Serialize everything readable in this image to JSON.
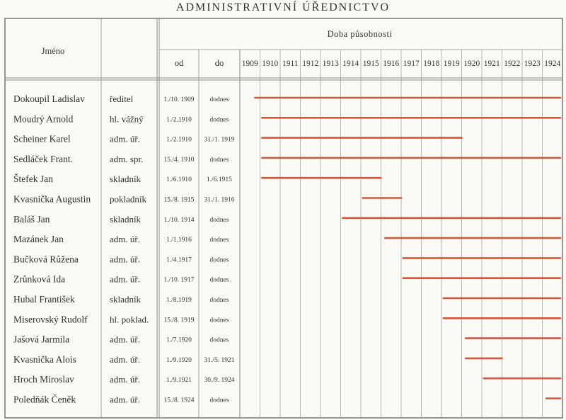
{
  "title": "ADMINISTRATIVNÍ ÚŘEDNICTVO",
  "chart_data": {
    "type": "bar",
    "title": "ADMINISTRATIVNÍ ÚŘEDNICTVO",
    "headers": {
      "name": "Jméno",
      "period": "Doba působnosti",
      "from": "od",
      "to": "do"
    },
    "years": [
      "1909",
      "1910",
      "1911",
      "1912",
      "1913",
      "1914",
      "1915",
      "1916",
      "1917",
      "1918",
      "1919",
      "1920",
      "1921",
      "1922",
      "1923",
      "1924"
    ],
    "xlim": [
      1909,
      1925
    ],
    "rows": [
      {
        "name": "Dokoupil Ladislav",
        "position": "ředitel",
        "from": "1./10. 1909",
        "to": "dodnes",
        "start": 1909.75,
        "end": 1924.9
      },
      {
        "name": "Moudrý Arnold",
        "position": "hl. vážný",
        "from": "1./2.1910",
        "to": "dodnes",
        "start": 1910.1,
        "end": 1924.9
      },
      {
        "name": "Scheiner Karel",
        "position": "adm. úř.",
        "from": "1./2.1910",
        "to": "31./1. 1919",
        "start": 1910.1,
        "end": 1920.0
      },
      {
        "name": "Sedláček Frant.",
        "position": "adm. spr.",
        "from": "15./4. 1910",
        "to": "dodnes",
        "start": 1910.1,
        "end": 1924.9
      },
      {
        "name": "Štefek Jan",
        "position": "skladník",
        "from": "1./6.1910",
        "to": "1./6.1915",
        "start": 1910.1,
        "end": 1916.0
      },
      {
        "name": "Kvasnička Augustin",
        "position": "pokladník",
        "from": "15./8. 1915",
        "to": "31./1. 1916",
        "start": 1915.1,
        "end": 1917.0
      },
      {
        "name": "Baláš Jan",
        "position": "skladník",
        "from": "1./10. 1914",
        "to": "dodnes",
        "start": 1914.1,
        "end": 1924.9
      },
      {
        "name": "Mazánek Jan",
        "position": "adm. úř.",
        "from": "1./1.1916",
        "to": "dodnes",
        "start": 1916.2,
        "end": 1924.9
      },
      {
        "name": "Bučková Růžena",
        "position": "adm. úř.",
        "from": "1./4.1917",
        "to": "dodnes",
        "start": 1917.1,
        "end": 1924.9
      },
      {
        "name": "Zrůnková Ida",
        "position": "adm. úř.",
        "from": "1./10. 1917",
        "to": "dodnes",
        "start": 1917.1,
        "end": 1924.9
      },
      {
        "name": "Hubal František",
        "position": "skladník",
        "from": "1./8.1919",
        "to": "dodnes",
        "start": 1919.1,
        "end": 1924.9
      },
      {
        "name": "Miserovský Rudolf",
        "position": "hl. poklad.",
        "from": "15./8. 1919",
        "to": "dodnes",
        "start": 1919.1,
        "end": 1924.9
      },
      {
        "name": "Jašová Jarmila",
        "position": "adm. úř.",
        "from": "1./7.1920",
        "to": "dodnes",
        "start": 1920.2,
        "end": 1924.9
      },
      {
        "name": "Kvasnička Alois",
        "position": "adm. úř.",
        "from": "1./9.1920",
        "to": "31./5. 1921",
        "start": 1920.2,
        "end": 1922.0
      },
      {
        "name": "Hroch Miroslav",
        "position": "adm. úř.",
        "from": "1./9.1921",
        "to": "30./9. 1924",
        "start": 1921.1,
        "end": 1925.0
      },
      {
        "name": "Poledňák Čeněk",
        "position": "adm. úř.",
        "from": "15./8. 1924",
        "to": "dodnes",
        "start": 1924.2,
        "end": 1924.95
      }
    ],
    "bar_color": "#d0583c",
    "grid": true
  }
}
